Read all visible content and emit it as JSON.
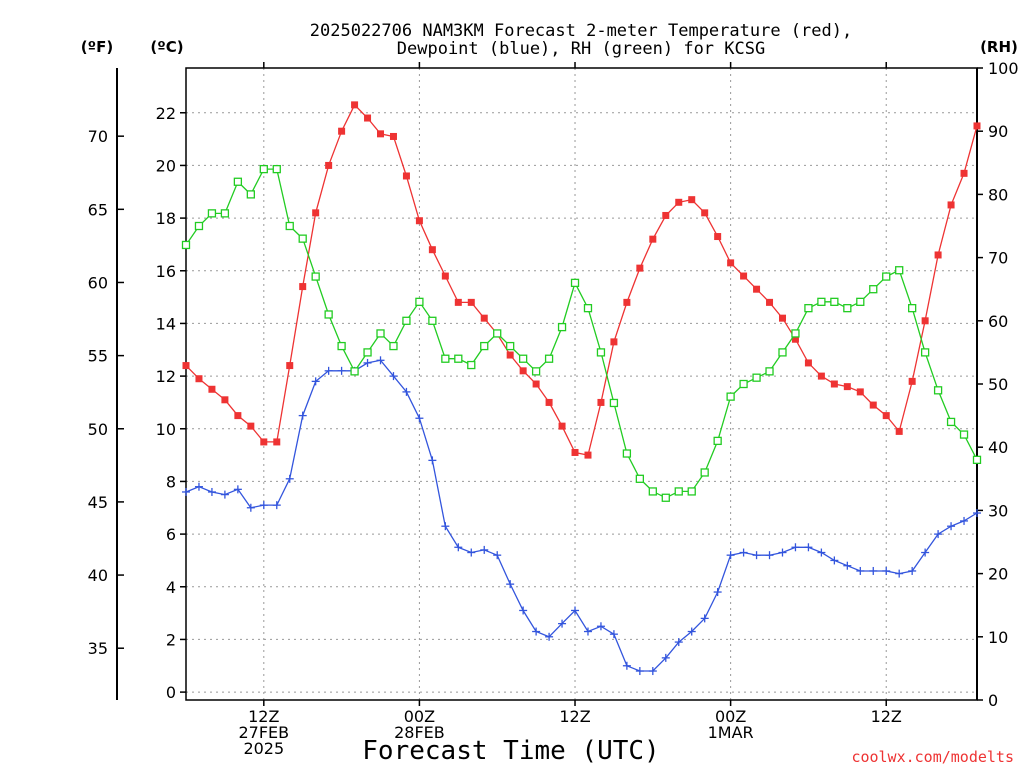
{
  "chart_data": {
    "type": "line",
    "title_lines": [
      "2025022706 NAM3KM Forecast 2-meter Temperature (red),",
      "Dewpoint (blue), RH (green) for KCSG"
    ],
    "xlabel": "Forecast Time (UTC)",
    "axis_unit_labels": {
      "fahrenheit": "(ºF)",
      "celsius": "(ºC)",
      "rh": "(RH)"
    },
    "watermark": "coolwx.com/modelts",
    "x_hours_range": [
      0,
      61
    ],
    "x_ticks": [
      {
        "hour": 6,
        "lines": [
          "12Z",
          "27FEB",
          "2025"
        ]
      },
      {
        "hour": 18,
        "lines": [
          "00Z",
          "28FEB"
        ]
      },
      {
        "hour": 30,
        "lines": [
          "12Z"
        ]
      },
      {
        "hour": 42,
        "lines": [
          "00Z",
          "1MAR"
        ]
      },
      {
        "hour": 54,
        "lines": [
          "12Z"
        ]
      }
    ],
    "y_celsius": {
      "range": [
        -0.3,
        23.7
      ],
      "ticks": [
        0,
        2,
        4,
        6,
        8,
        10,
        12,
        14,
        16,
        18,
        20,
        22
      ]
    },
    "y_fahrenheit": {
      "ticks": [
        35,
        40,
        45,
        50,
        55,
        60,
        65,
        70
      ]
    },
    "y_rh": {
      "range": [
        0,
        100
      ],
      "ticks": [
        0,
        10,
        20,
        30,
        40,
        50,
        60,
        70,
        80,
        90,
        100
      ]
    },
    "grid": true,
    "hours": [
      0,
      1,
      2,
      3,
      4,
      5,
      6,
      7,
      8,
      9,
      10,
      11,
      12,
      13,
      14,
      15,
      16,
      17,
      18,
      19,
      20,
      21,
      22,
      23,
      24,
      25,
      26,
      27,
      28,
      29,
      30,
      31,
      32,
      33,
      34,
      35,
      36,
      37,
      38,
      39,
      40,
      41,
      42,
      43,
      44,
      45,
      46,
      47,
      48,
      49,
      50,
      51,
      52,
      53,
      54,
      55,
      56,
      57,
      58,
      59,
      60,
      61
    ],
    "series": [
      {
        "id": "temperature",
        "axis": "celsius",
        "color": "#ee3333",
        "marker": "filled-square",
        "values": [
          12.4,
          11.9,
          11.5,
          11.1,
          10.5,
          10.1,
          9.5,
          9.5,
          12.4,
          15.4,
          18.2,
          20.0,
          21.3,
          22.3,
          21.8,
          21.2,
          21.1,
          19.6,
          17.9,
          16.8,
          15.8,
          14.8,
          14.8,
          14.2,
          13.6,
          12.8,
          12.2,
          11.7,
          11.0,
          10.1,
          9.1,
          9.0,
          11.0,
          13.3,
          14.8,
          16.1,
          17.2,
          18.1,
          18.6,
          18.7,
          18.2,
          17.3,
          16.3,
          15.8,
          15.3,
          14.8,
          14.2,
          13.4,
          12.5,
          12.0,
          11.7,
          11.6,
          11.4,
          10.9,
          10.5,
          9.9,
          11.8,
          14.1,
          16.6,
          18.5,
          19.7,
          21.5
        ]
      },
      {
        "id": "dewpoint",
        "axis": "celsius",
        "color": "#3355dd",
        "marker": "plus",
        "values": [
          7.6,
          7.8,
          7.6,
          7.5,
          7.7,
          7.0,
          7.1,
          7.1,
          8.1,
          10.5,
          11.8,
          12.2,
          12.2,
          12.2,
          12.5,
          12.6,
          12.0,
          11.4,
          10.4,
          8.8,
          6.3,
          5.5,
          5.3,
          5.4,
          5.2,
          4.1,
          3.1,
          2.3,
          2.1,
          2.6,
          3.1,
          2.3,
          2.5,
          2.2,
          1.0,
          0.8,
          0.8,
          1.3,
          1.9,
          2.3,
          2.8,
          3.8,
          5.2,
          5.3,
          5.2,
          5.2,
          5.3,
          5.5,
          5.5,
          5.3,
          5.0,
          4.8,
          4.6,
          4.6,
          4.6,
          4.5,
          4.6,
          5.3,
          6.0,
          6.3,
          6.5,
          6.8
        ]
      },
      {
        "id": "rh",
        "axis": "rh",
        "color": "#22cc22",
        "marker": "open-square",
        "values": [
          72,
          75,
          77,
          77,
          82,
          80,
          84,
          84,
          75,
          73,
          67,
          61,
          56,
          52,
          55,
          58,
          56,
          60,
          63,
          60,
          54,
          54,
          53,
          56,
          58,
          56,
          54,
          52,
          54,
          59,
          66,
          62,
          55,
          47,
          39,
          35,
          33,
          32,
          33,
          33,
          36,
          41,
          48,
          50,
          51,
          52,
          55,
          58,
          62,
          63,
          63,
          62,
          63,
          65,
          67,
          68,
          62,
          55,
          49,
          44,
          42,
          38
        ]
      }
    ]
  }
}
